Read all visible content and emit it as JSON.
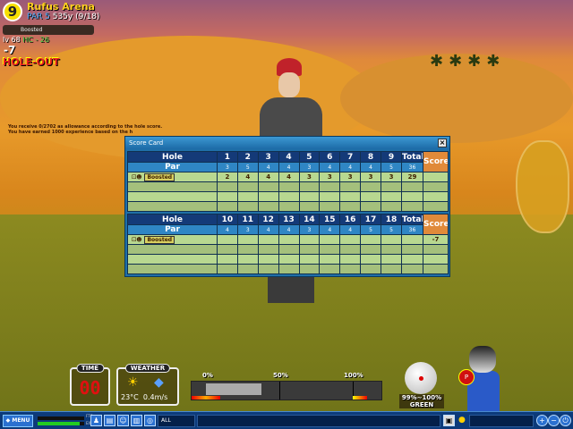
{
  "hud": {
    "hole_number": "9",
    "course": "Rufus Arena",
    "par_label": "PAR 5",
    "distance": "535y",
    "hole_progress": "(9/18)",
    "player_name": "Boosted",
    "level": "lv 68",
    "handicap": "HC - 26",
    "score_to_par": "-7",
    "status": "HOLE-OUT"
  },
  "messages": [
    "You receive 0/2702 as allowance according to the hole score.",
    "You have earned 1000 experience based on the h"
  ],
  "scorecard": {
    "title": "Score Card",
    "close_icon": "close-icon",
    "hole_label": "Hole",
    "par_label": "Par",
    "total_label": "Total",
    "score_label": "Score",
    "front": {
      "holes": [
        "1",
        "2",
        "3",
        "4",
        "5",
        "6",
        "7",
        "8",
        "9"
      ],
      "par": [
        "3",
        "5",
        "4",
        "4",
        "3",
        "4",
        "4",
        "4",
        "5"
      ],
      "par_total": "36",
      "players": [
        {
          "name": "Boosted",
          "scores": [
            "2",
            "4",
            "4",
            "4",
            "3",
            "3",
            "3",
            "3",
            "3"
          ],
          "total": "29",
          "score": ""
        }
      ]
    },
    "back": {
      "holes": [
        "10",
        "11",
        "12",
        "13",
        "14",
        "15",
        "16",
        "17",
        "18"
      ],
      "par": [
        "4",
        "3",
        "4",
        "4",
        "3",
        "4",
        "4",
        "5",
        "5"
      ],
      "par_total": "36",
      "players": [
        {
          "name": "Boosted",
          "scores": [
            "",
            "",
            "",
            "",
            "",
            "",
            "",
            "",
            ""
          ],
          "total": "",
          "score": "-7"
        }
      ]
    }
  },
  "time": {
    "label": "TIME",
    "value": "00"
  },
  "weather": {
    "label": "WEATHER",
    "temperature": "23°C",
    "wind": "0.4m/s",
    "icon": "sun-icon"
  },
  "power_gauge": {
    "labels": [
      "0%",
      "50%",
      "100%"
    ],
    "level_percent": 38
  },
  "ball": {
    "accuracy": "99%~100%",
    "lie": "GREEN"
  },
  "bottom_bar": {
    "menu": "MENU",
    "fatigue_label": "FTG",
    "exp_label": "EXP",
    "exp_fraction": 0.9,
    "chat_channel": "ALL"
  },
  "colors": {
    "header": "#143a78",
    "par_row": "#2f86c4",
    "score_header": "#e08a3a",
    "player_row": "#b8d890"
  }
}
